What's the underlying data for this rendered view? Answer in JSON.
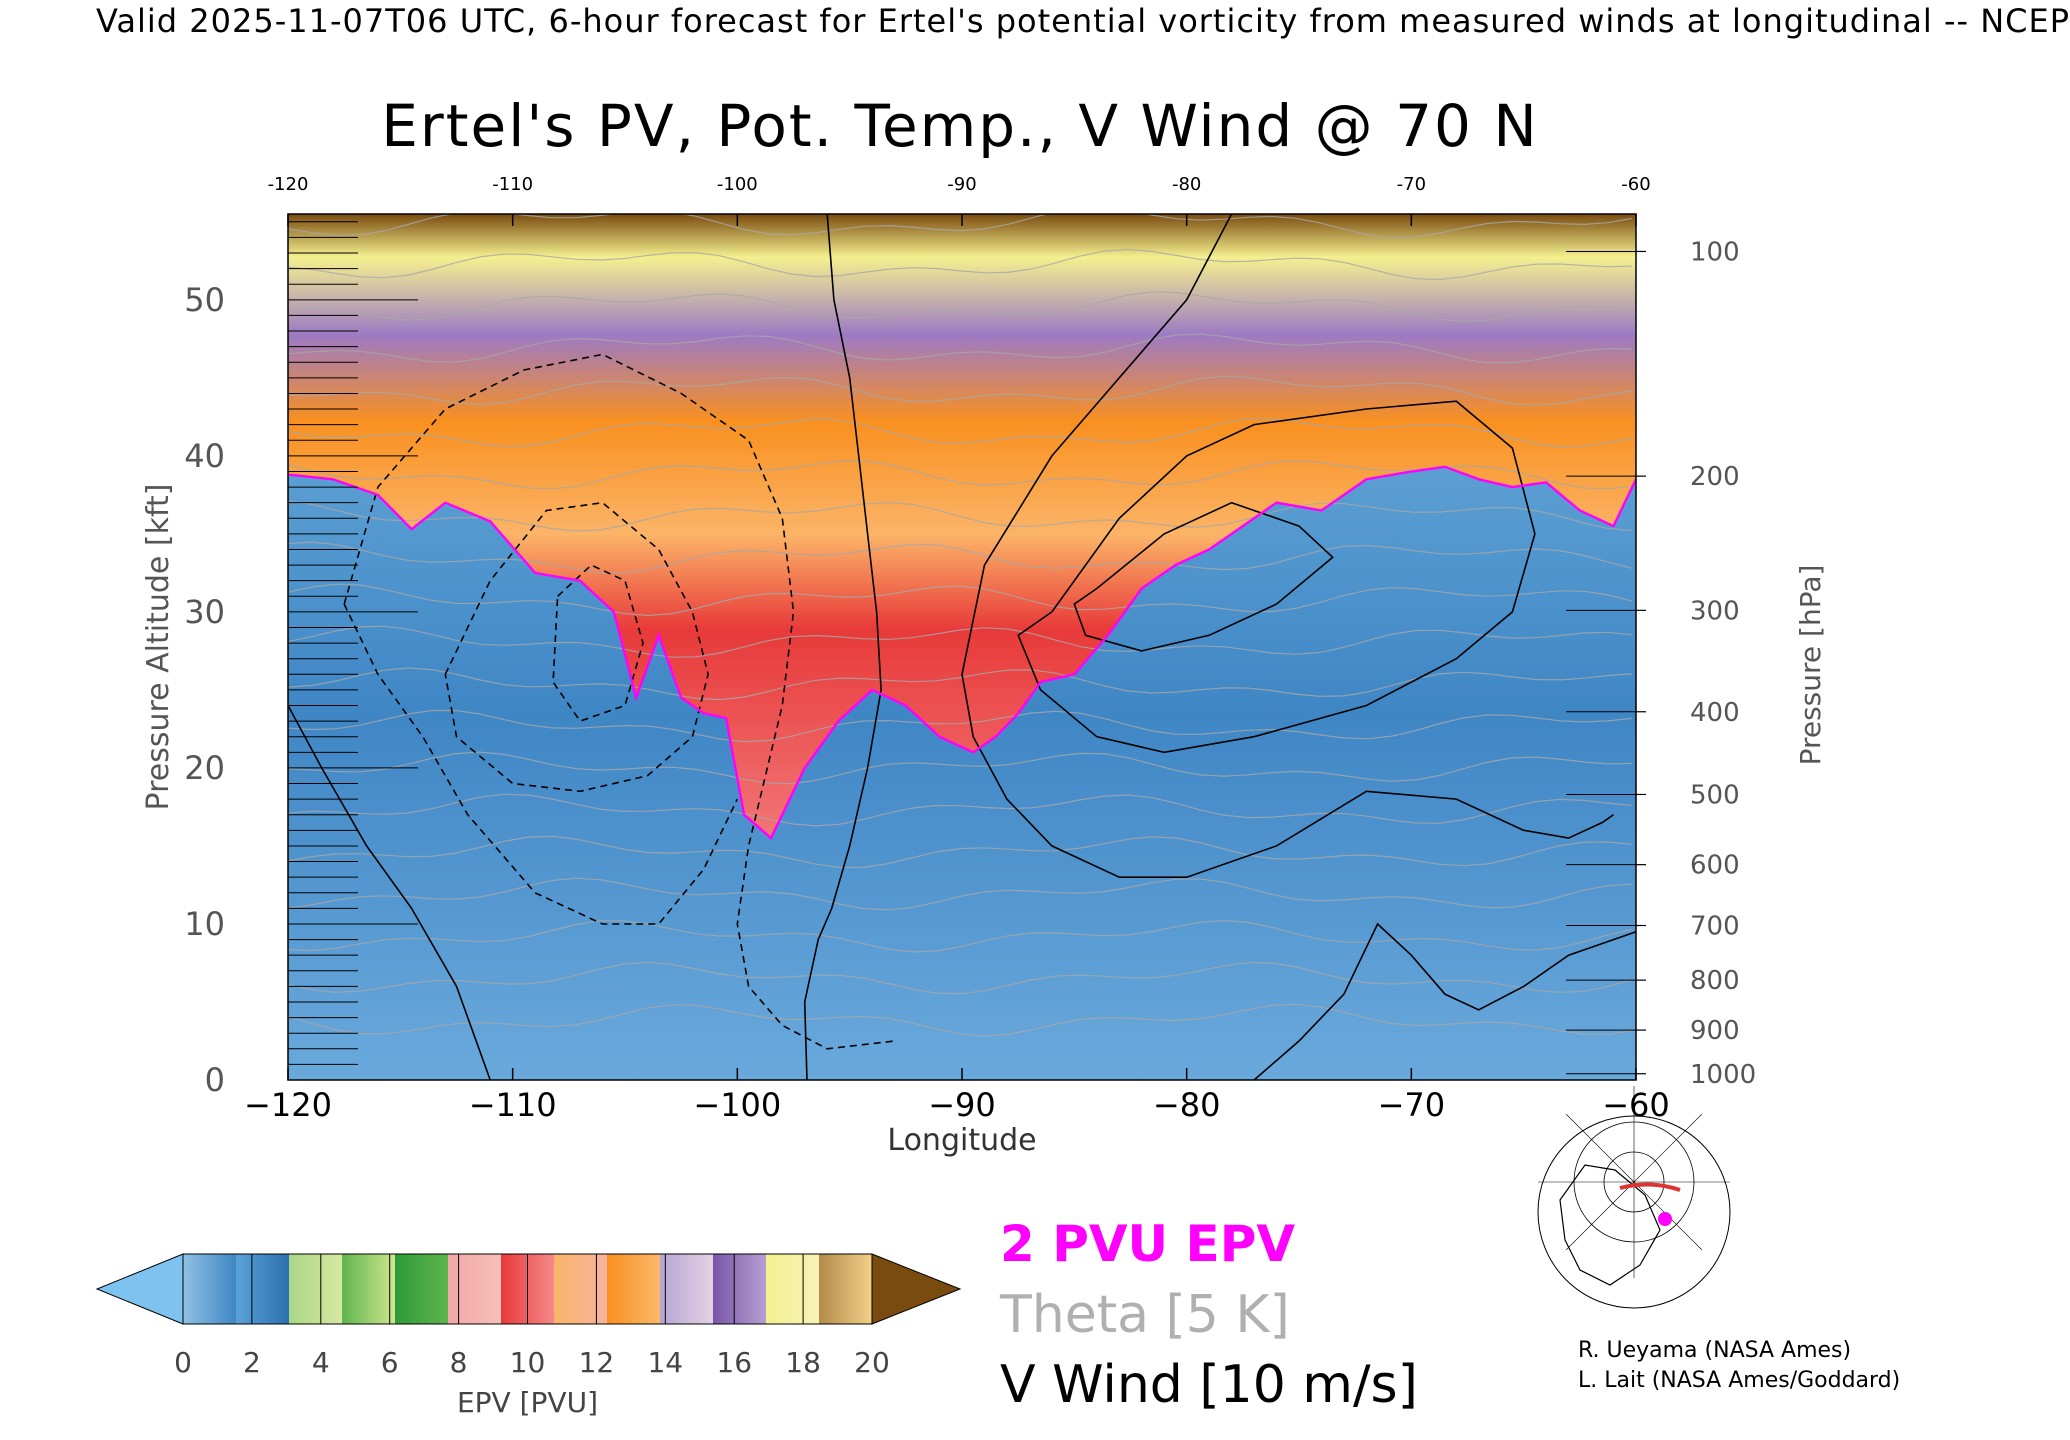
{
  "header": "Valid 2025-11-07T06 UTC, 6-hour forecast for Ertel's potential vorticity from measured winds at longitudinal -- NCEP",
  "chart_data": {
    "type": "heatmap",
    "title": "Ertel's PV, Pot. Temp., V Wind @ 70 N",
    "xlabel": "Longitude",
    "ylabel": "Pressure Altitude [kft]",
    "y2label": "Pressure [hPa]",
    "xlim": [
      -120,
      -60
    ],
    "ylim": [
      0,
      55.5
    ],
    "x_ticks": [
      -120,
      -110,
      -100,
      -90,
      -80,
      -70,
      -60
    ],
    "x_tick_labels": [
      "−120",
      "−110",
      "−100",
      "−90",
      "−80",
      "−70",
      "−60"
    ],
    "top_tick_labels": [
      "-120",
      "-110",
      "-100",
      "-90",
      "-80",
      "-70",
      "-60"
    ],
    "y_ticks": [
      0,
      10,
      20,
      30,
      40,
      50
    ],
    "y_tick_labels": [
      "0",
      "10",
      "20",
      "30",
      "40",
      "50"
    ],
    "pressure_ticks": [
      {
        "label": "100",
        "kft": 53.1
      },
      {
        "label": "200",
        "kft": 38.7
      },
      {
        "label": "300",
        "kft": 30.1
      },
      {
        "label": "400",
        "kft": 23.6
      },
      {
        "label": "500",
        "kft": 18.3
      },
      {
        "label": "600",
        "kft": 13.8
      },
      {
        "label": "700",
        "kft": 9.9
      },
      {
        "label": "800",
        "kft": 6.4
      },
      {
        "label": "900",
        "kft": 3.2
      },
      {
        "label": "1000",
        "kft": 0.4
      }
    ],
    "tropopause_2pvu": {
      "lon": [
        -120,
        -118,
        -116,
        -114.5,
        -113,
        -111,
        -109,
        -107,
        -105.5,
        -104.5,
        -103.5,
        -102.5,
        -101.5,
        -100.5,
        -99.7,
        -98.5,
        -97,
        -95.5,
        -94,
        -92.5,
        -91,
        -89.5,
        -88.5,
        -87.5,
        -86.5,
        -85,
        -83.5,
        -82,
        -80.5,
        -79,
        -77.5,
        -76,
        -74,
        -72,
        -70,
        -68.5,
        -67,
        -65.5,
        -64,
        -62.5,
        -61,
        -60
      ],
      "kft": [
        38.8,
        38.5,
        37.5,
        35.3,
        37.0,
        35.8,
        32.5,
        32.0,
        30.0,
        24.5,
        28.5,
        24.5,
        23.5,
        23.2,
        17.0,
        15.5,
        20.0,
        23.0,
        25.0,
        24.0,
        22.0,
        21.0,
        22.0,
        23.5,
        25.5,
        26.0,
        28.5,
        31.5,
        33.0,
        34.0,
        35.5,
        37.0,
        36.5,
        38.5,
        39.0,
        39.3,
        38.5,
        38.0,
        38.3,
        36.5,
        35.5,
        38.5
      ]
    },
    "v_wind_contours": [
      {
        "level": 0,
        "style": "solid",
        "lon": [
          -96.0,
          -95.7,
          -95.0,
          -94.6,
          -94.2,
          -93.8,
          -93.6,
          -94.2,
          -95.0,
          -95.8,
          -96.4,
          -97.0,
          -96.9
        ],
        "kft": [
          55.5,
          50.0,
          45.0,
          40.0,
          35.0,
          30.0,
          25.0,
          20.0,
          15.0,
          11.0,
          9.0,
          5.0,
          0.0
        ]
      },
      {
        "level": 0,
        "style": "solid",
        "lon": [
          -120,
          -118.5,
          -116.5,
          -114.5,
          -112.5,
          -111.5,
          -111.0
        ],
        "kft": [
          24.0,
          20.0,
          15.0,
          11.0,
          6.0,
          2.0,
          0.0
        ]
      },
      {
        "level": 0,
        "style": "solid",
        "lon": [
          -77.0,
          -75.0,
          -73.0,
          -71.5,
          -70.0,
          -68.5,
          -67.0,
          -65.0,
          -63.0,
          -61.0,
          -60.0
        ],
        "kft": [
          0.0,
          2.5,
          5.5,
          10.0,
          8.0,
          5.5,
          4.5,
          6.0,
          8.0,
          9.0,
          9.5
        ]
      },
      {
        "level": 10,
        "style": "solid",
        "lon": [
          -78.0,
          -80.0,
          -83.0,
          -86.0,
          -89.0,
          -90.0,
          -89.5,
          -88.0,
          -86.0,
          -83.0,
          -80.0,
          -76.0,
          -72.0,
          -68.0,
          -65.0,
          -63.0,
          -61.5,
          -61.0
        ],
        "kft": [
          55.5,
          50.0,
          45.0,
          40.0,
          33.0,
          26.0,
          22.0,
          18.0,
          15.0,
          13.0,
          13.0,
          15.0,
          18.5,
          18.0,
          16.0,
          15.5,
          16.5,
          17.0
        ]
      },
      {
        "level": 20,
        "style": "solid",
        "lon": [
          -86.0,
          -83.0,
          -80.0,
          -77.0,
          -72.0,
          -68.0,
          -65.5,
          -64.5,
          -65.5,
          -68.0,
          -72.0,
          -77.0,
          -81.0,
          -84.0,
          -86.5,
          -87.5,
          -86.0
        ],
        "kft": [
          30.0,
          36.0,
          40.0,
          42.0,
          43.0,
          43.5,
          40.5,
          35.0,
          30.0,
          27.0,
          24.0,
          22.0,
          21.0,
          22.0,
          25.0,
          28.5,
          30.0
        ]
      },
      {
        "level": 30,
        "style": "solid",
        "lon": [
          -84.0,
          -81.0,
          -78.0,
          -75.0,
          -73.5,
          -76.0,
          -79.0,
          -82.0,
          -84.5,
          -85.0,
          -84.0
        ],
        "kft": [
          31.5,
          35.0,
          37.0,
          35.5,
          33.5,
          30.5,
          28.5,
          27.5,
          28.5,
          30.5,
          31.5
        ]
      },
      {
        "level": -10,
        "style": "dashed",
        "lon": [
          -117.5,
          -116.0,
          -113.0,
          -109.5,
          -106.0,
          -102.5,
          -99.5,
          -98.0,
          -97.5,
          -98.0,
          -99.5,
          -100.0,
          -99.5,
          -98.0,
          -96.0,
          -93.0
        ],
        "kft": [
          30.5,
          38.0,
          43.0,
          45.5,
          46.5,
          44.0,
          41.0,
          36.0,
          30.0,
          24.0,
          15.0,
          10.0,
          6.0,
          3.5,
          2.0,
          2.5
        ]
      },
      {
        "level": -10,
        "style": "dashed",
        "lon": [
          -117.5,
          -116.0,
          -114.0,
          -112.0,
          -109.0,
          -106.0,
          -103.5,
          -101.5,
          -100.0
        ],
        "kft": [
          30.5,
          26.0,
          22.0,
          17.0,
          12.0,
          10.0,
          10.0,
          13.5,
          18.0
        ]
      },
      {
        "level": -20,
        "style": "dashed",
        "lon": [
          -113.0,
          -111.0,
          -108.5,
          -106.0,
          -103.5,
          -102.0,
          -101.3,
          -102.0,
          -104.0,
          -107.0,
          -110.0,
          -112.5,
          -113.0
        ],
        "kft": [
          26.0,
          32.0,
          36.5,
          37.0,
          34.0,
          30.0,
          26.0,
          22.0,
          19.5,
          18.5,
          19.0,
          22.0,
          26.0
        ]
      },
      {
        "level": -30,
        "style": "dashed",
        "lon": [
          -108.0,
          -106.5,
          -105.0,
          -104.2,
          -105.0,
          -107.0,
          -108.2,
          -108.0
        ],
        "kft": [
          31.0,
          33.0,
          32.0,
          28.0,
          24.0,
          23.0,
          25.5,
          31.0
        ]
      }
    ],
    "colorbar": {
      "label": "EPV [PVU]",
      "ticks": [
        "0",
        "2",
        "4",
        "6",
        "8",
        "10",
        "12",
        "14",
        "16",
        "18",
        "20"
      ],
      "under_color": "#7ec3ef",
      "over_color": "#7a4b0f",
      "segments": [
        [
          "#8fc1e3",
          "#3f86c5"
        ],
        [
          "#5aa2d6",
          "#2c6fb0"
        ],
        [
          "#a9d686",
          "#d8e9a1"
        ],
        [
          "#5fb54d",
          "#d1e78f"
        ],
        [
          "#2e9a3a",
          "#5fb54d"
        ],
        [
          "#f2a7a7",
          "#f6c0b8"
        ],
        [
          "#e83a3a",
          "#f58a8a"
        ],
        [
          "#fbb468",
          "#f6b4a0"
        ],
        [
          "#f9901f",
          "#fbb86b"
        ],
        [
          "#b5a4d1",
          "#e5d3e6"
        ],
        [
          "#7a55a8",
          "#b7a1d2"
        ],
        [
          "#f5f08f",
          "#f6f3b8"
        ],
        [
          "#b48b4a",
          "#f2d18a"
        ]
      ]
    },
    "grid": false,
    "legend": {
      "position": "bottom-right",
      "entries": [
        {
          "label": "2 PVU EPV",
          "color": "#ff00ff"
        },
        {
          "label": "Theta [5 K]",
          "color": "#b0b0b0"
        },
        {
          "label": "V Wind [10 m/s]",
          "color": "#000000"
        }
      ]
    }
  },
  "credits": [
    "R. Ueyama (NASA Ames)",
    "L. Lait (NASA Ames/Goddard)"
  ]
}
